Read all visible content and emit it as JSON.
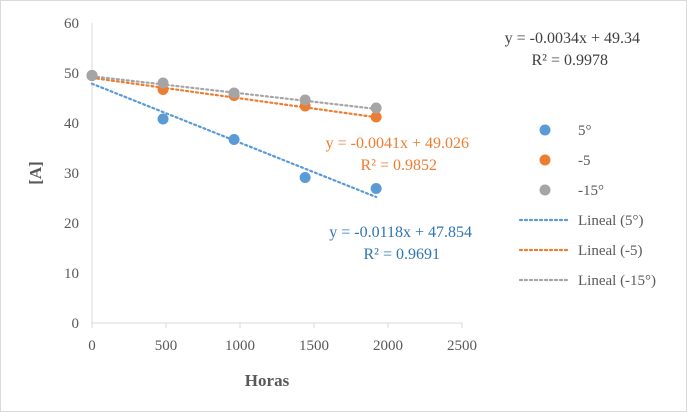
{
  "chart_data": {
    "type": "scatter",
    "xlabel": "Horas",
    "ylabel": "[A]",
    "xlim": [
      0,
      2500
    ],
    "ylim": [
      0,
      60
    ],
    "xticks": [
      "0",
      "500",
      "1000",
      "1500",
      "2000",
      "2500"
    ],
    "yticks": [
      "0",
      "10",
      "20",
      "30",
      "40",
      "50",
      "60"
    ],
    "grid": false,
    "legend_position": "right",
    "series": [
      {
        "name": "5°",
        "color": "#5b9bd5",
        "x": [
          0,
          480,
          960,
          1440,
          1920
        ],
        "y": [
          49.5,
          40.8,
          36.7,
          29.1,
          26.9
        ],
        "trendline": {
          "name": "Lineal (5°)",
          "slope": -0.0118,
          "intercept": 47.854,
          "x_range": [
            0,
            1920
          ],
          "equation": "y = -0.0118x + 47.854",
          "r2": "R² = 0.9691",
          "label_color": "#2e75b6"
        }
      },
      {
        "name": "-5",
        "color": "#ed7d31",
        "x": [
          0,
          480,
          960,
          1440,
          1920
        ],
        "y": [
          49.5,
          46.7,
          45.5,
          43.4,
          41.2
        ],
        "trendline": {
          "name": "Lineal (-5)",
          "slope": -0.0041,
          "intercept": 49.026,
          "x_range": [
            0,
            1920
          ],
          "equation": "y = -0.0041x + 49.026",
          "r2": "R² = 0.9852",
          "label_color": "#ed7d31"
        }
      },
      {
        "name": "-15°",
        "color": "#a5a5a5",
        "x": [
          0,
          480,
          960,
          1440,
          1920
        ],
        "y": [
          49.5,
          48.0,
          46.0,
          44.6,
          43.0
        ],
        "trendline": {
          "name": "Lineal (-15°)",
          "slope": -0.0034,
          "intercept": 49.34,
          "x_range": [
            0,
            1920
          ],
          "equation": "y = -0.0034x + 49.34",
          "r2": "R² = 0.9978",
          "label_color": "#404040"
        }
      }
    ]
  }
}
